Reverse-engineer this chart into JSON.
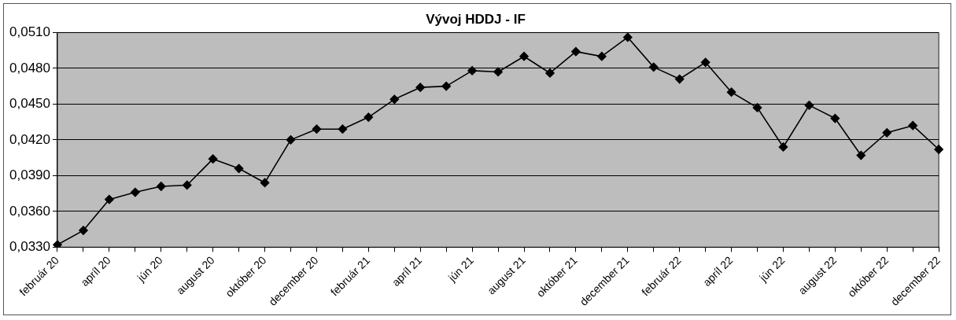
{
  "chart_data": {
    "type": "line",
    "title": "Vývoj HDDJ - IF",
    "categories": [
      "február 20",
      null,
      "apríl 20",
      null,
      "jún 20",
      null,
      "august 20",
      null,
      "október 20",
      null,
      "december 20",
      null,
      "február 21",
      null,
      "apríl 21",
      null,
      "jún 21",
      null,
      "august 21",
      null,
      "október 21",
      null,
      "december 21",
      null,
      "február 22",
      null,
      "apríl 22",
      null,
      "jún 22",
      null,
      "august 22",
      null,
      "október 22",
      null,
      "december 22"
    ],
    "series": [
      {
        "color": "#000000",
        "values": [
          0.0332,
          0.0344,
          0.037,
          0.0376,
          0.0381,
          0.0382,
          0.0404,
          0.0396,
          0.0384,
          0.042,
          0.0429,
          0.0429,
          0.0439,
          0.0454,
          0.0464,
          0.0465,
          0.0478,
          0.0477,
          0.049,
          0.0476,
          0.0494,
          0.049,
          0.0506,
          0.0481,
          0.0471,
          0.0485,
          0.046,
          0.0447,
          0.0414,
          0.0449,
          0.0438,
          0.0407,
          0.0426,
          0.0432,
          0.0412
        ]
      }
    ],
    "ylim": [
      0.033,
      0.051
    ],
    "yticks": [
      {
        "value": 0.033,
        "label": "0,0330"
      },
      {
        "value": 0.036,
        "label": "0,0360"
      },
      {
        "value": 0.039,
        "label": "0,0390"
      },
      {
        "value": 0.042,
        "label": "0,0420"
      },
      {
        "value": 0.045,
        "label": "0,0450"
      },
      {
        "value": 0.048,
        "label": "0,0480"
      },
      {
        "value": 0.051,
        "label": "0,0510"
      }
    ],
    "grid": "y",
    "legend": false,
    "marker": "diamond",
    "line_style": "solid"
  }
}
